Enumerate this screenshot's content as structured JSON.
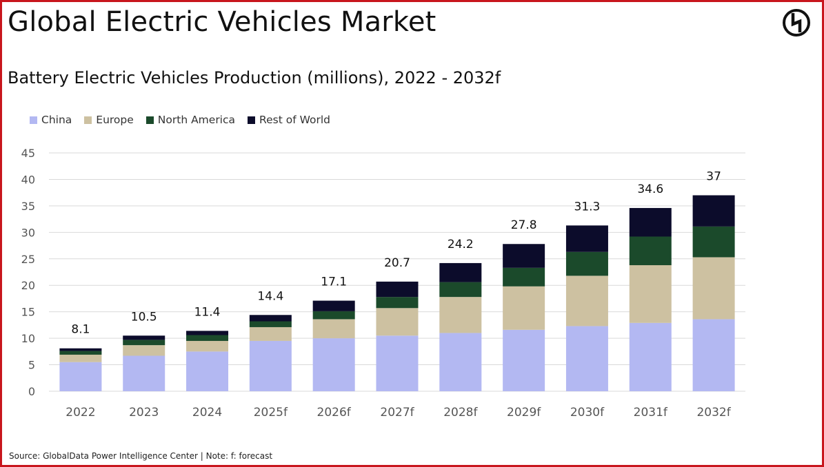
{
  "title": "Global Electric Vehicles Market",
  "chart_data": {
    "type": "bar",
    "stacked": true,
    "title": "Battery Electric Vehicles Production (millions), 2022 - 2032f",
    "xlabel": "",
    "ylabel": "",
    "ylim": [
      0,
      45
    ],
    "yticks": [
      0,
      5,
      10,
      15,
      20,
      25,
      30,
      35,
      40,
      45
    ],
    "grid": true,
    "legend_position": "top-left",
    "categories": [
      "2022",
      "2023",
      "2024",
      "2025f",
      "2026f",
      "2027f",
      "2028f",
      "2029f",
      "2030f",
      "2031f",
      "2032f"
    ],
    "series": [
      {
        "name": "China",
        "color": "#b3b8f2",
        "values": [
          5.5,
          6.7,
          7.5,
          9.5,
          10.0,
          10.5,
          11.0,
          11.6,
          12.3,
          12.9,
          13.6
        ]
      },
      {
        "name": "Europe",
        "color": "#cdc1a1",
        "values": [
          1.4,
          2.0,
          2.0,
          2.6,
          3.6,
          5.2,
          6.8,
          8.2,
          9.5,
          10.9,
          11.7
        ]
      },
      {
        "name": "North America",
        "color": "#1b4a2b",
        "values": [
          0.7,
          1.0,
          1.1,
          1.1,
          1.5,
          2.1,
          2.8,
          3.5,
          4.5,
          5.4,
          5.8
        ]
      },
      {
        "name": "Rest of World",
        "color": "#0c0c2b",
        "values": [
          0.5,
          0.8,
          0.8,
          1.2,
          2.0,
          2.9,
          3.6,
          4.5,
          5.0,
          5.4,
          5.9
        ]
      }
    ],
    "totals": [
      "8.1",
      "10.5",
      "11.4",
      "14.4",
      "17.1",
      "20.7",
      "24.2",
      "27.8",
      "31.3",
      "34.6",
      "37"
    ]
  },
  "source": "Source: GlobalData Power Intelligence Center | Note: f: forecast",
  "logo": {
    "icon": "globaldata-logo-icon",
    "color": "#111111"
  },
  "colors": {
    "border": "#c8161d",
    "grid": "#d9d9d9"
  }
}
